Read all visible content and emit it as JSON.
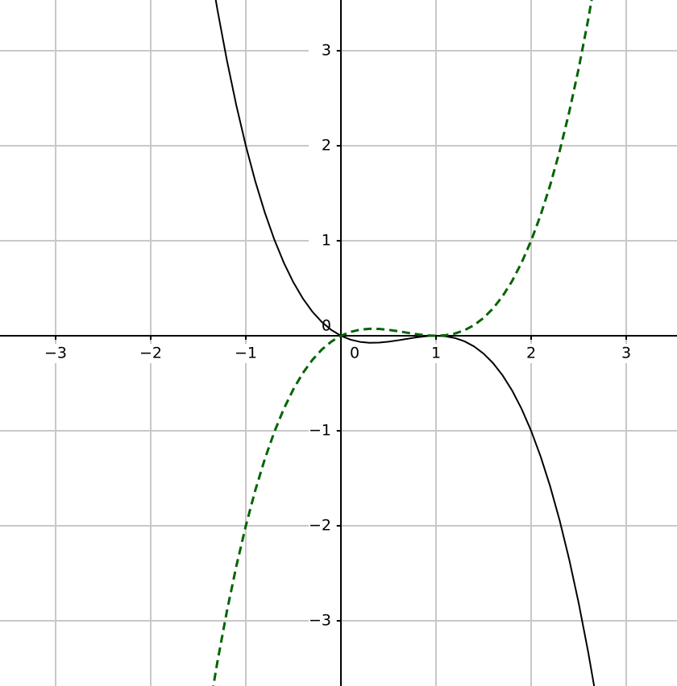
{
  "chart_data": {
    "type": "line",
    "x": [
      -1.4,
      -1.3,
      -1.2,
      -1.1,
      -1.0,
      -0.9,
      -0.8,
      -0.7,
      -0.6,
      -0.5,
      -0.4,
      -0.3,
      -0.2,
      -0.1,
      0,
      0.1,
      0.2,
      0.3,
      0.4,
      0.5,
      0.6,
      0.7,
      0.8,
      0.9,
      1.0,
      1.1,
      1.2,
      1.3,
      1.4,
      1.5,
      1.6,
      1.7,
      1.8,
      1.9,
      2.0,
      2.1,
      2.2,
      2.3,
      2.4,
      2.5,
      2.6,
      2.7
    ],
    "series": [
      {
        "color": "#000000",
        "dashed": false,
        "values": [
          4.032,
          3.4385,
          2.904,
          2.4255,
          2,
          1.6245,
          1.296,
          1.0115,
          0.768,
          0.5625,
          0.392,
          0.2535,
          0.144,
          0.0605,
          0,
          -0.0405,
          -0.064,
          -0.0735,
          -0.072,
          -0.0625,
          -0.048,
          -0.0315,
          -0.016,
          -0.0045,
          0,
          -0.0055,
          -0.024,
          -0.0585,
          -0.112,
          -0.1875,
          -0.288,
          -0.4165,
          -0.576,
          -0.7695,
          -1,
          -1.2705,
          -1.584,
          -1.9435,
          -2.352,
          -2.8125,
          -3.328,
          -3.9015
        ]
      },
      {
        "color": "#006400",
        "dashed": true,
        "values": [
          -4.032,
          -3.4385,
          -2.904,
          -2.4255,
          -2,
          -1.6245,
          -1.296,
          -1.0115,
          -0.768,
          -0.5625,
          -0.392,
          -0.2535,
          -0.144,
          -0.0605,
          0,
          0.0405,
          0.064,
          0.0735,
          0.072,
          0.0625,
          0.048,
          0.0315,
          0.016,
          0.0045,
          0,
          0.0055,
          0.024,
          0.0585,
          0.112,
          0.1875,
          0.288,
          0.4165,
          0.576,
          0.7695,
          1,
          1.2705,
          1.584,
          1.9435,
          2.352,
          2.8125,
          3.328,
          3.9015
        ]
      }
    ],
    "xlim": [
      -3.585,
      3.534
    ],
    "ylim": [
      -3.686,
      3.534
    ],
    "xticks": [
      {
        "value": -3,
        "label": "−3"
      },
      {
        "value": -2,
        "label": "−2"
      },
      {
        "value": -1,
        "label": "−1"
      },
      0,
      1,
      2,
      3
    ],
    "yticks": [
      {
        "value": -3,
        "label": "−3"
      },
      {
        "value": -2,
        "label": "−2"
      },
      {
        "value": -1,
        "label": "−1"
      },
      0,
      1,
      2,
      3
    ],
    "grid": true
  }
}
